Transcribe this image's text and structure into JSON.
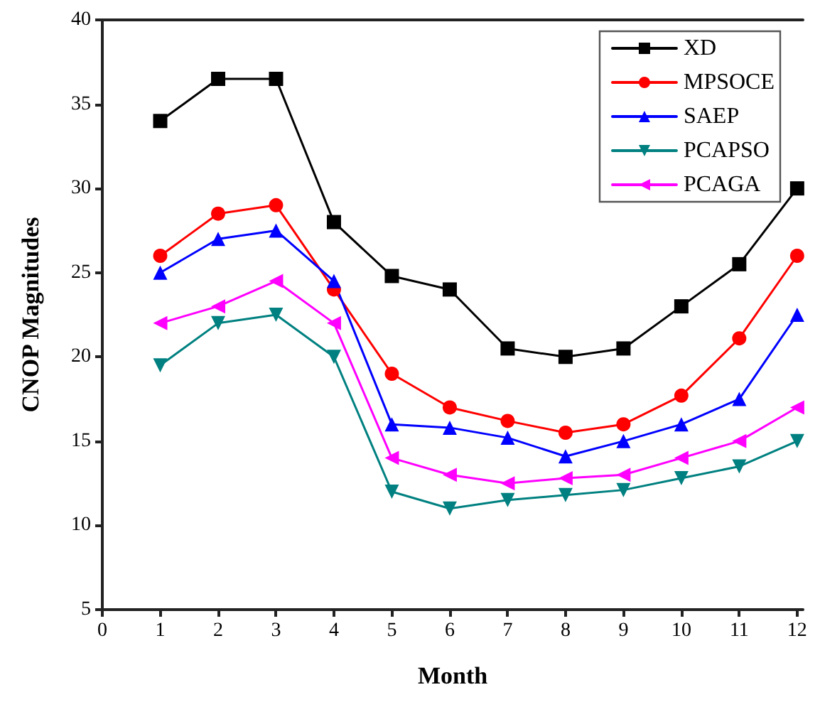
{
  "chart_data": {
    "type": "line",
    "xlabel": "Month",
    "ylabel": "CNOP Magnitudes",
    "x": [
      1,
      2,
      3,
      4,
      5,
      6,
      7,
      8,
      9,
      10,
      11,
      12
    ],
    "xlim": [
      0,
      12.1
    ],
    "xticks": [
      0,
      1,
      2,
      3,
      4,
      5,
      6,
      7,
      8,
      9,
      10,
      11,
      12
    ],
    "ylim": [
      5,
      40
    ],
    "yticks": [
      5,
      10,
      15,
      20,
      25,
      30,
      35,
      40
    ],
    "grid": false,
    "legend": "top right",
    "line_style": "solid",
    "series": [
      {
        "name": "XD",
        "color": "#000000",
        "marker": "square",
        "values": [
          34,
          36.5,
          36.5,
          28,
          24.8,
          24,
          20.5,
          20,
          20.5,
          23,
          25.5,
          30
        ]
      },
      {
        "name": "MPSOCE",
        "color": "#ff0000",
        "marker": "circle",
        "values": [
          26,
          28.5,
          29,
          24,
          19,
          17,
          16.2,
          15.5,
          16,
          17.7,
          21.1,
          26
        ]
      },
      {
        "name": "SAEP",
        "color": "#0000ff",
        "marker": "triangle",
        "values": [
          25,
          27,
          27.5,
          24.5,
          16,
          15.8,
          15.2,
          14.1,
          15,
          16,
          17.5,
          22.5
        ]
      },
      {
        "name": "PCAPSO",
        "color": "#008080",
        "marker": "triangle-down",
        "values": [
          19.5,
          22,
          22.5,
          20,
          12,
          11,
          11.5,
          11.8,
          12.1,
          12.8,
          13.5,
          15
        ]
      },
      {
        "name": "PCAGA",
        "color": "#ff00ff",
        "marker": "triangle-left",
        "values": [
          22,
          23,
          24.5,
          22,
          14,
          13,
          12.5,
          12.8,
          13,
          14,
          15,
          17
        ]
      }
    ]
  }
}
